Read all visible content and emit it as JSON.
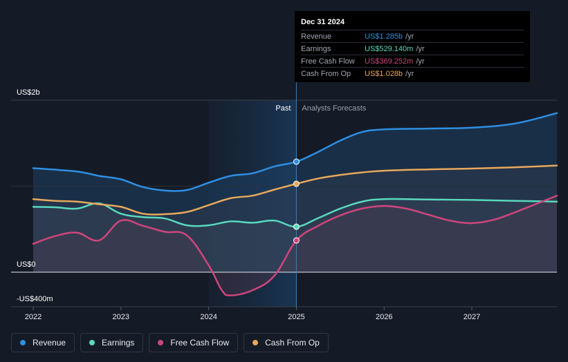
{
  "chart_data": {
    "type": "area",
    "title": "",
    "x_domain": [
      2022,
      2027.97
    ],
    "y_domain": [
      -400,
      2000
    ],
    "y_axis_labels": [
      {
        "value": 2000,
        "text": "US$2b"
      },
      {
        "value": 0,
        "text": "US$0"
      },
      {
        "value": -400,
        "text": "-US$400m"
      }
    ],
    "x_ticks": [
      {
        "value": 2022,
        "text": "2022"
      },
      {
        "value": 2023,
        "text": "2023"
      },
      {
        "value": 2024,
        "text": "2024"
      },
      {
        "value": 2025,
        "text": "2025"
      },
      {
        "value": 2026,
        "text": "2026"
      },
      {
        "value": 2027,
        "text": "2027"
      }
    ],
    "past_label": "Past",
    "forecast_label": "Analysts Forecasts",
    "past_shade_start": 2024,
    "divider": 2025,
    "series": [
      {
        "name": "Revenue",
        "color": "#2e8fe3",
        "points": [
          [
            2022,
            1210
          ],
          [
            2022.5,
            1170
          ],
          [
            2022.75,
            1120
          ],
          [
            2023,
            1080
          ],
          [
            2023.25,
            990
          ],
          [
            2023.5,
            950
          ],
          [
            2023.75,
            955
          ],
          [
            2024,
            1040
          ],
          [
            2024.25,
            1120
          ],
          [
            2024.5,
            1150
          ],
          [
            2024.75,
            1230
          ],
          [
            2025,
            1285
          ],
          [
            2025.25,
            1400
          ],
          [
            2025.5,
            1530
          ],
          [
            2025.75,
            1630
          ],
          [
            2026,
            1660
          ],
          [
            2026.5,
            1670
          ],
          [
            2027,
            1680
          ],
          [
            2027.5,
            1730
          ],
          [
            2027.97,
            1850
          ]
        ]
      },
      {
        "name": "Earnings",
        "color": "#59d9be",
        "points": [
          [
            2022,
            760
          ],
          [
            2022.25,
            755
          ],
          [
            2022.5,
            740
          ],
          [
            2022.75,
            800
          ],
          [
            2023,
            680
          ],
          [
            2023.25,
            640
          ],
          [
            2023.5,
            625
          ],
          [
            2023.75,
            545
          ],
          [
            2024,
            545
          ],
          [
            2024.25,
            590
          ],
          [
            2024.5,
            575
          ],
          [
            2024.75,
            600
          ],
          [
            2025,
            529
          ],
          [
            2025.25,
            630
          ],
          [
            2025.5,
            740
          ],
          [
            2025.75,
            820
          ],
          [
            2026,
            850
          ],
          [
            2026.5,
            845
          ],
          [
            2027,
            840
          ],
          [
            2027.5,
            830
          ],
          [
            2027.97,
            820
          ]
        ]
      },
      {
        "name": "Free Cash Flow",
        "color": "#d0457c",
        "points": [
          [
            2022,
            330
          ],
          [
            2022.25,
            420
          ],
          [
            2022.5,
            460
          ],
          [
            2022.75,
            370
          ],
          [
            2023,
            600
          ],
          [
            2023.25,
            540
          ],
          [
            2023.5,
            470
          ],
          [
            2023.75,
            430
          ],
          [
            2024,
            80
          ],
          [
            2024.15,
            -210
          ],
          [
            2024.25,
            -270
          ],
          [
            2024.5,
            -210
          ],
          [
            2024.75,
            -40
          ],
          [
            2025,
            369
          ],
          [
            2025.25,
            540
          ],
          [
            2025.5,
            660
          ],
          [
            2025.75,
            740
          ],
          [
            2026,
            770
          ],
          [
            2026.25,
            740
          ],
          [
            2026.5,
            670
          ],
          [
            2026.75,
            600
          ],
          [
            2027,
            570
          ],
          [
            2027.25,
            610
          ],
          [
            2027.5,
            700
          ],
          [
            2027.97,
            890
          ]
        ]
      },
      {
        "name": "Cash From Op",
        "color": "#e8a85c",
        "points": [
          [
            2022,
            850
          ],
          [
            2022.25,
            830
          ],
          [
            2022.5,
            820
          ],
          [
            2022.75,
            790
          ],
          [
            2023,
            760
          ],
          [
            2023.25,
            680
          ],
          [
            2023.5,
            675
          ],
          [
            2023.75,
            700
          ],
          [
            2024,
            780
          ],
          [
            2024.25,
            860
          ],
          [
            2024.5,
            890
          ],
          [
            2024.75,
            960
          ],
          [
            2025,
            1028
          ],
          [
            2025.25,
            1090
          ],
          [
            2025.5,
            1130
          ],
          [
            2025.75,
            1160
          ],
          [
            2026,
            1180
          ],
          [
            2026.5,
            1195
          ],
          [
            2027,
            1205
          ],
          [
            2027.5,
            1220
          ],
          [
            2027.97,
            1240
          ]
        ]
      }
    ]
  },
  "tooltip": {
    "date": "Dec 31 2024",
    "rows": [
      {
        "label": "Revenue",
        "value": "US$1.285b",
        "unit": "/yr",
        "color": "#2e8fe3"
      },
      {
        "label": "Earnings",
        "value": "US$529.140m",
        "unit": "/yr",
        "color": "#59d9be"
      },
      {
        "label": "Free Cash Flow",
        "value": "US$369.252m",
        "unit": "/yr",
        "color": "#d0457c"
      },
      {
        "label": "Cash From Op",
        "value": "US$1.028b",
        "unit": "/yr",
        "color": "#e8a85c"
      }
    ]
  },
  "legend": [
    {
      "label": "Revenue",
      "color": "#2e8fe3"
    },
    {
      "label": "Earnings",
      "color": "#59d9be"
    },
    {
      "label": "Free Cash Flow",
      "color": "#d0457c"
    },
    {
      "label": "Cash From Op",
      "color": "#e8a85c"
    }
  ]
}
